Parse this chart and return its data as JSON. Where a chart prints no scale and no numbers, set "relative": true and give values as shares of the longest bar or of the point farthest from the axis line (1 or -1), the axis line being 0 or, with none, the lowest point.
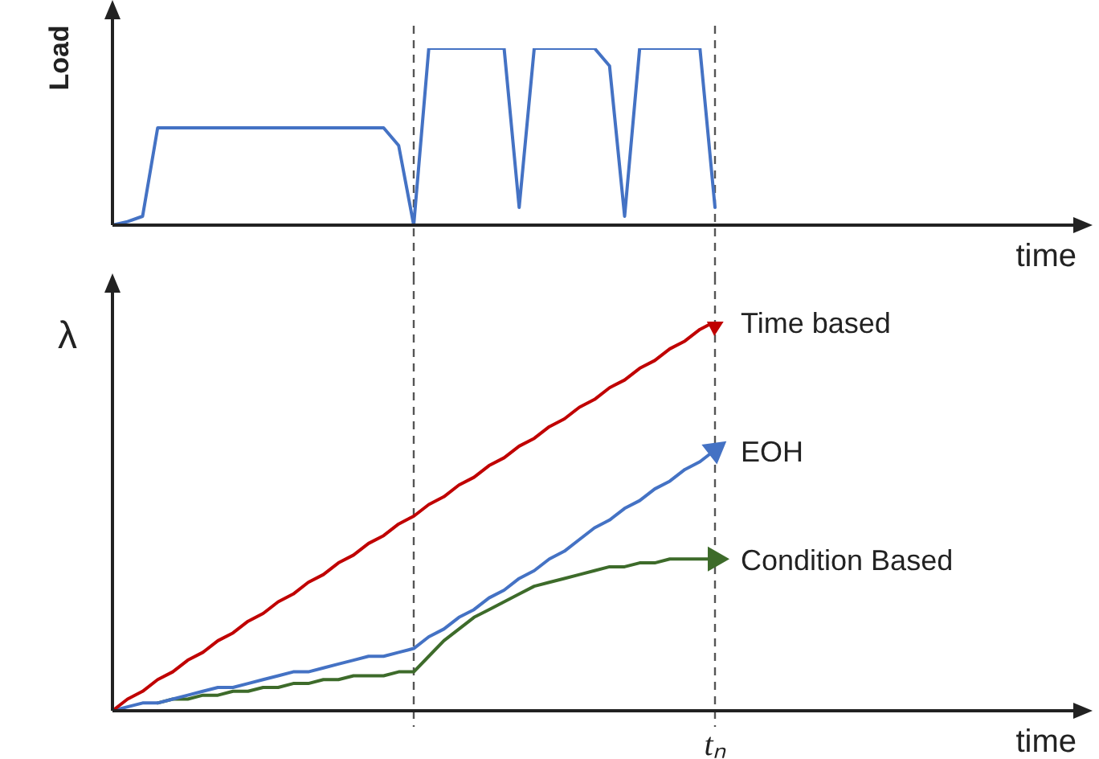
{
  "chart_data": [
    {
      "type": "line",
      "ylabel": "Load",
      "xlabel": "time",
      "relative": true,
      "categories": [
        null,
        null,
        null,
        null,
        null,
        null,
        null,
        null,
        null,
        null,
        null,
        null,
        null,
        null,
        null,
        null,
        null,
        null,
        null,
        null,
        null,
        null,
        null,
        null,
        null,
        null,
        null,
        null,
        null,
        null,
        null,
        null,
        null,
        null,
        null,
        null,
        null,
        null,
        null,
        null,
        null,
        null,
        null,
        null,
        null,
        null,
        null,
        null,
        null,
        null,
        null,
        null,
        null,
        null,
        null,
        null,
        null,
        null,
        null,
        null,
        null,
        null,
        null,
        null,
        null
      ],
      "series": [
        {
          "color": "#4472c4",
          "values": [
            0,
            0.02,
            0.05,
            0.55,
            0.55,
            0.55,
            0.55,
            0.55,
            0.55,
            0.55,
            0.55,
            0.55,
            0.55,
            0.55,
            0.55,
            0.55,
            0.55,
            0.55,
            0.55,
            0.45,
            0,
            1,
            1,
            1,
            1,
            1,
            1,
            0.1,
            1,
            1,
            1,
            1,
            1,
            0.9,
            0.05,
            1,
            1,
            1,
            1,
            1,
            0.1,
            null,
            null,
            null,
            null,
            null,
            null,
            null,
            null,
            null,
            null,
            null,
            null,
            null,
            null,
            null,
            null,
            null,
            null,
            null,
            null,
            null,
            null,
            null,
            null
          ]
        }
      ]
    },
    {
      "type": "line",
      "ylabel": "λ",
      "xlabel": "time",
      "relative": true,
      "annotations": [
        "tₙ"
      ],
      "categories": [
        null,
        null,
        null,
        null,
        null,
        null,
        null,
        null,
        null,
        null,
        null,
        null,
        null,
        null,
        null,
        null,
        null,
        null,
        null,
        null,
        null,
        null,
        null,
        null,
        null,
        null,
        null,
        null,
        null,
        null,
        null,
        null,
        null,
        null,
        null,
        null,
        null,
        null,
        null,
        null,
        null,
        null,
        null,
        null,
        null,
        null,
        null,
        null,
        null,
        null,
        null,
        null,
        null,
        null,
        null,
        null,
        null,
        null,
        null,
        null,
        null,
        null,
        null,
        null,
        null
      ],
      "series": [
        {
          "name": "Time based",
          "color": "#c00000",
          "values": [
            0,
            0.03,
            0.05,
            0.08,
            0.1,
            0.13,
            0.15,
            0.18,
            0.2,
            0.23,
            0.25,
            0.28,
            0.3,
            0.33,
            0.35,
            0.38,
            0.4,
            0.43,
            0.45,
            0.48,
            0.5,
            0.53,
            0.55,
            0.58,
            0.6,
            0.63,
            0.65,
            0.68,
            0.7,
            0.73,
            0.75,
            0.78,
            0.8,
            0.83,
            0.85,
            0.88,
            0.9,
            0.93,
            0.95,
            0.98,
            1,
            null,
            null,
            null,
            null,
            null,
            null,
            null,
            null,
            null,
            null,
            null,
            null,
            null,
            null,
            null,
            null,
            null,
            null,
            null,
            null,
            null,
            null,
            null,
            null
          ]
        },
        {
          "name": "EOH",
          "color": "#4472c4",
          "values": [
            0,
            0.01,
            0.02,
            0.02,
            0.03,
            0.04,
            0.05,
            0.06,
            0.06,
            0.07,
            0.08,
            0.09,
            0.1,
            0.1,
            0.11,
            0.12,
            0.13,
            0.14,
            0.14,
            0.15,
            0.16,
            0.19,
            0.21,
            0.24,
            0.26,
            0.29,
            0.31,
            0.34,
            0.36,
            0.39,
            0.41,
            0.44,
            0.47,
            0.49,
            0.52,
            0.54,
            0.57,
            0.59,
            0.62,
            0.64,
            0.67,
            null,
            null,
            null,
            null,
            null,
            null,
            null,
            null,
            null,
            null,
            null,
            null,
            null,
            null,
            null,
            null,
            null,
            null,
            null,
            null,
            null,
            null,
            null,
            null
          ]
        },
        {
          "name": "Condition Based",
          "color": "#3d6b2a",
          "values": [
            null,
            null,
            null,
            0.02,
            0.03,
            0.03,
            0.04,
            0.04,
            0.05,
            0.05,
            0.06,
            0.06,
            0.07,
            0.07,
            0.08,
            0.08,
            0.09,
            0.09,
            0.09,
            0.1,
            0.1,
            0.14,
            0.18,
            0.21,
            0.24,
            0.26,
            0.28,
            0.3,
            0.32,
            0.33,
            0.34,
            0.35,
            0.36,
            0.37,
            0.37,
            0.38,
            0.38,
            0.39,
            0.39,
            0.39,
            0.39,
            null,
            null,
            null,
            null,
            null,
            null,
            null,
            null,
            null,
            null,
            null,
            null,
            null,
            null,
            null,
            null,
            null,
            null,
            null,
            null,
            null,
            null,
            null,
            null
          ]
        }
      ]
    }
  ]
}
